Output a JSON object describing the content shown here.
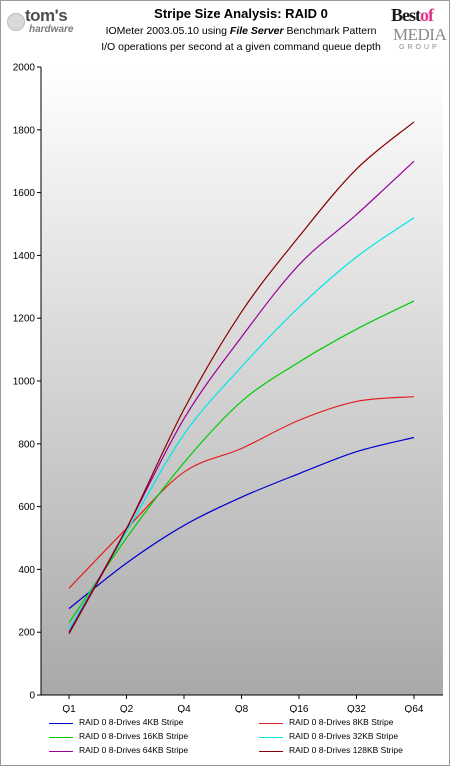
{
  "header": {
    "logo_left_line1": "tom's",
    "logo_left_line2": "hardware",
    "logo_right_best": "Best",
    "logo_right_of": "of",
    "logo_right_media": "MEDIA",
    "logo_right_group": "GROUP"
  },
  "chart_data": {
    "type": "line",
    "title": "Stripe Size Analysis: RAID 0",
    "subtitle_pre": "IOMeter 2003.05.10 using",
    "subtitle_emph": "File Server",
    "subtitle_post": "Benchmark Pattern",
    "subtitle2": "I/O operations per second at a given command queue depth",
    "xlabel": "",
    "ylabel": "",
    "categories": [
      "Q1",
      "Q2",
      "Q4",
      "Q8",
      "Q16",
      "Q32",
      "Q64"
    ],
    "ylim": [
      0,
      2000
    ],
    "yticks": [
      0,
      200,
      400,
      600,
      800,
      1000,
      1200,
      1400,
      1600,
      1800,
      2000
    ],
    "grid": false,
    "legend_position": "bottom",
    "colors": {
      "plot_top": "#ffffff",
      "plot_bottom": "#a9a9a9",
      "axis": "#000000"
    },
    "series": [
      {
        "name": "RAID 0 8-Drives 4KB Stripe",
        "color": "#0000cc",
        "values": [
          275,
          420,
          540,
          630,
          705,
          775,
          820
        ]
      },
      {
        "name": "RAID 0 8-Drives 8KB Stripe",
        "color": "#e02020",
        "values": [
          340,
          530,
          710,
          785,
          875,
          935,
          950
        ]
      },
      {
        "name": "RAID 0 8-Drives 16KB Stripe",
        "color": "#00cc00",
        "values": [
          230,
          500,
          740,
          935,
          1060,
          1165,
          1255
        ]
      },
      {
        "name": "RAID 0 8-Drives 32KB Stripe",
        "color": "#00e6e6",
        "values": [
          210,
          520,
          830,
          1045,
          1235,
          1395,
          1520
        ]
      },
      {
        "name": "RAID 0 8-Drives 64KB Stripe",
        "color": "#990099",
        "values": [
          200,
          530,
          880,
          1140,
          1370,
          1530,
          1700
        ]
      },
      {
        "name": "RAID 0 8-Drives 128KB Stripe",
        "color": "#880000",
        "values": [
          195,
          530,
          910,
          1220,
          1460,
          1675,
          1825
        ]
      }
    ]
  }
}
